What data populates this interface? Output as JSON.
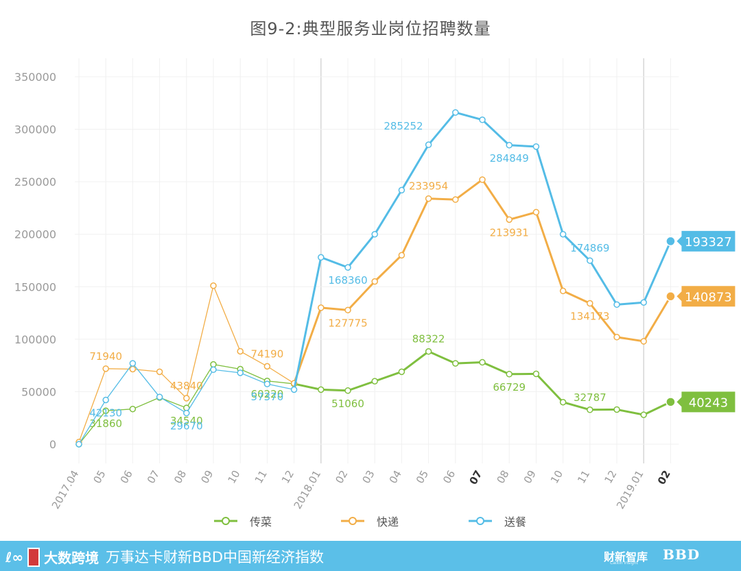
{
  "title": "图9-2:典型服务业岗位招聘数量",
  "legend": [
    {
      "name": "传菜",
      "color": "#7fbf3f"
    },
    {
      "name": "快递",
      "color": "#f2ad46"
    },
    {
      "name": "送餐",
      "color": "#54bce6"
    }
  ],
  "footer": {
    "brand_left": "大数跨境",
    "slogan": "万事达卡财新BBD中国新经济指数",
    "logo_1": "财新智库",
    "logo_1_sub": "Caixin Insight",
    "logo_2": "BBD"
  },
  "chart_data": {
    "type": "line",
    "title": "图9-2:典型服务业岗位招聘数量",
    "xlabel": "",
    "ylabel": "",
    "ylim": [
      0,
      350000
    ],
    "yticks": [
      0,
      50000,
      100000,
      150000,
      200000,
      250000,
      300000,
      350000
    ],
    "grid": true,
    "legend_position": "bottom",
    "categories": [
      "2017.04",
      "05",
      "06",
      "07",
      "08",
      "09",
      "10",
      "11",
      "12",
      "2018.01",
      "02",
      "03",
      "04",
      "05",
      "06",
      "07",
      "08",
      "09",
      "10",
      "11",
      "12",
      "2019.01",
      "02"
    ],
    "bold_categories": [
      15,
      22
    ],
    "series": [
      {
        "name": "传菜",
        "color": "#7fbf3f",
        "values": [
          0,
          31860,
          33500,
          44500,
          34540,
          76000,
          71500,
          60220,
          57500,
          52000,
          51060,
          60000,
          69000,
          88322,
          77000,
          78000,
          66729,
          67000,
          40000,
          32787,
          33000,
          28000,
          40243
        ],
        "labels": [
          {
            "i": 1,
            "text": "31860",
            "pos": "below"
          },
          {
            "i": 4,
            "text": "34540",
            "pos": "below"
          },
          {
            "i": 7,
            "text": "60220",
            "pos": "below"
          },
          {
            "i": 10,
            "text": "51060",
            "pos": "below"
          },
          {
            "i": 13,
            "text": "88322",
            "pos": "above"
          },
          {
            "i": 16,
            "text": "66729",
            "pos": "below"
          },
          {
            "i": 19,
            "text": "32787",
            "pos": "above"
          }
        ],
        "end_label": "40243"
      },
      {
        "name": "快递",
        "color": "#f2ad46",
        "values": [
          2000,
          71940,
          71500,
          69000,
          43840,
          151000,
          88500,
          74190,
          58000,
          130000,
          127775,
          155000,
          180000,
          233954,
          233000,
          252000,
          213931,
          221000,
          146000,
          134173,
          102000,
          98000,
          140873
        ],
        "labels": [
          {
            "i": 1,
            "text": "71940",
            "pos": "above"
          },
          {
            "i": 4,
            "text": "43840",
            "pos": "above"
          },
          {
            "i": 7,
            "text": "74190",
            "pos": "above"
          },
          {
            "i": 10,
            "text": "127775",
            "pos": "below"
          },
          {
            "i": 13,
            "text": "233954",
            "pos": "above"
          },
          {
            "i": 16,
            "text": "213931",
            "pos": "below"
          },
          {
            "i": 19,
            "text": "134173",
            "pos": "below"
          }
        ],
        "end_label": "140873"
      },
      {
        "name": "送餐",
        "color": "#54bce6",
        "values": [
          0,
          42130,
          77000,
          45000,
          29670,
          71000,
          68000,
          57370,
          52000,
          178000,
          168360,
          200000,
          242000,
          285252,
          316000,
          309000,
          284849,
          283500,
          200000,
          174869,
          133000,
          135000,
          193327
        ],
        "labels": [
          {
            "i": 1,
            "text": "42130",
            "pos": "below"
          },
          {
            "i": 4,
            "text": "29670",
            "pos": "below"
          },
          {
            "i": 7,
            "text": "57370",
            "pos": "below"
          },
          {
            "i": 10,
            "text": "168360",
            "pos": "below"
          },
          {
            "i": 13,
            "text": "285252",
            "pos": "left"
          },
          {
            "i": 16,
            "text": "284849",
            "pos": "below"
          },
          {
            "i": 19,
            "text": "174869",
            "pos": "above"
          }
        ],
        "end_label": "193327"
      }
    ]
  }
}
